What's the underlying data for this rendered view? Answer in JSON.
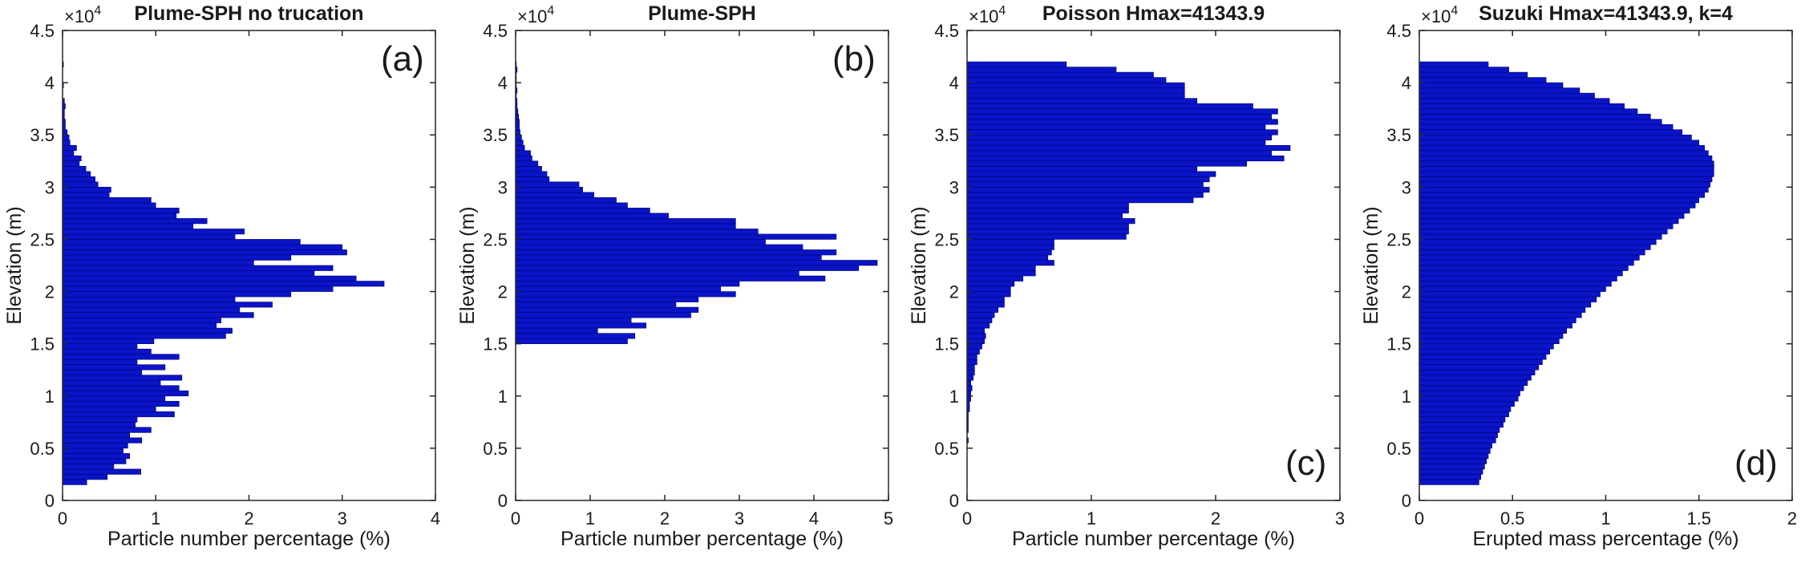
{
  "colors": {
    "bar_fill": "#0a14c8",
    "bar_edge": "#00006a",
    "axis": "#262626"
  },
  "chart_data": [
    {
      "type": "bar",
      "orientation": "horizontal",
      "title": "Plume-SPH no trucation",
      "panel_label": "(a)",
      "xlabel": "Particle number percentage (%)",
      "ylabel": "Elevation (m)",
      "xlim": [
        0,
        4
      ],
      "ylim": [
        0,
        45000
      ],
      "xticks": [
        "0",
        "1",
        "2",
        "3",
        "4"
      ],
      "yticks": [
        "0",
        "0.5",
        "1",
        "1.5",
        "2",
        "2.5",
        "3",
        "3.5",
        "4",
        "4.5"
      ],
      "y_multiplier": "×10^4",
      "bin_width_m": 500,
      "bin_centers_m": [
        1750,
        2250,
        2750,
        3250,
        3750,
        4250,
        4750,
        5250,
        5750,
        6250,
        6750,
        7250,
        7750,
        8250,
        8750,
        9250,
        9750,
        10250,
        10750,
        11250,
        11750,
        12250,
        12750,
        13250,
        13750,
        14250,
        14750,
        15250,
        15750,
        16250,
        16750,
        17250,
        17750,
        18250,
        18750,
        19250,
        19750,
        20250,
        20750,
        21250,
        21750,
        22250,
        22750,
        23250,
        23750,
        24250,
        24750,
        25250,
        25750,
        26250,
        26750,
        27250,
        27750,
        28250,
        28750,
        29250,
        29750,
        30250,
        30750,
        31250,
        31750,
        32250,
        32750,
        33250,
        33750,
        34250,
        34750,
        35250,
        35750,
        36250,
        36750,
        37250,
        37750,
        38250,
        38750,
        39250,
        39750,
        40250,
        40750,
        41250,
        41750
      ],
      "values": [
        0.26,
        0.48,
        0.84,
        0.55,
        0.68,
        0.72,
        0.65,
        0.7,
        0.85,
        0.72,
        0.95,
        0.78,
        0.8,
        1.2,
        1.0,
        1.25,
        1.1,
        1.35,
        1.25,
        1.05,
        1.28,
        0.85,
        1.1,
        0.8,
        1.25,
        0.95,
        0.8,
        0.98,
        1.75,
        1.82,
        1.65,
        1.7,
        2.05,
        1.9,
        2.25,
        1.85,
        2.45,
        2.9,
        3.45,
        3.15,
        2.7,
        2.9,
        2.05,
        2.45,
        3.05,
        3.0,
        2.55,
        1.85,
        1.95,
        1.4,
        1.55,
        1.22,
        1.25,
        1.0,
        0.95,
        0.5,
        0.52,
        0.38,
        0.35,
        0.3,
        0.25,
        0.18,
        0.2,
        0.12,
        0.15,
        0.08,
        0.07,
        0.05,
        0.03,
        0.03,
        0.02,
        0.02,
        0.03,
        0.02,
        0.0,
        0.0,
        0.01,
        0.0,
        0.0,
        0.0,
        0.01
      ]
    },
    {
      "type": "bar",
      "orientation": "horizontal",
      "title": "Plume-SPH",
      "panel_label": "(b)",
      "xlabel": "Particle number percentage (%)",
      "ylabel": "Elevation (m)",
      "xlim": [
        0,
        5
      ],
      "ylim": [
        0,
        45000
      ],
      "xticks": [
        "0",
        "1",
        "2",
        "3",
        "4",
        "5"
      ],
      "yticks": [
        "0",
        "0.5",
        "1",
        "1.5",
        "2",
        "2.5",
        "3",
        "3.5",
        "4",
        "4.5"
      ],
      "y_multiplier": "×10^4",
      "bin_width_m": 500,
      "bin_centers_m": [
        15250,
        15750,
        16250,
        16750,
        17250,
        17750,
        18250,
        18750,
        19250,
        19750,
        20250,
        20750,
        21250,
        21750,
        22250,
        22750,
        23250,
        23750,
        24250,
        24750,
        25250,
        25750,
        26250,
        26750,
        27250,
        27750,
        28250,
        28750,
        29250,
        29750,
        30250,
        30750,
        31250,
        31750,
        32250,
        32750,
        33250,
        33750,
        34250,
        34750,
        35250,
        35750,
        36250,
        36750,
        37250,
        37750,
        38250,
        38750,
        39250,
        39750,
        40250,
        40750,
        41250,
        41750
      ],
      "values": [
        1.5,
        1.6,
        1.1,
        1.75,
        1.55,
        2.35,
        2.45,
        2.15,
        2.45,
        2.95,
        2.75,
        3.0,
        4.15,
        3.8,
        4.6,
        4.85,
        4.1,
        4.3,
        3.85,
        3.35,
        4.3,
        3.25,
        2.95,
        2.95,
        2.05,
        1.8,
        1.5,
        1.35,
        1.05,
        0.9,
        0.85,
        0.45,
        0.42,
        0.35,
        0.3,
        0.22,
        0.2,
        0.12,
        0.1,
        0.08,
        0.06,
        0.05,
        0.05,
        0.04,
        0.03,
        0.02,
        0.02,
        0.01,
        0.02,
        0.01,
        0.01,
        0.01,
        0.02,
        0.01
      ]
    },
    {
      "type": "bar",
      "orientation": "horizontal",
      "title": "Poisson Hmax=41343.9",
      "panel_label": "(c)",
      "xlabel": "Particle number percentage (%)",
      "ylabel": "Elevation (m)",
      "xlim": [
        0,
        3
      ],
      "ylim": [
        0,
        45000
      ],
      "xticks": [
        "0",
        "1",
        "2",
        "3"
      ],
      "yticks": [
        "0",
        "0.5",
        "1",
        "1.5",
        "2",
        "2.5",
        "3",
        "3.5",
        "4",
        "4.5"
      ],
      "y_multiplier": "×10^4",
      "bin_width_m": 500,
      "bin_centers_m": [
        1750,
        2250,
        2750,
        3250,
        3750,
        4250,
        4750,
        5250,
        5750,
        6250,
        6750,
        7250,
        7750,
        8250,
        8750,
        9250,
        9750,
        10250,
        10750,
        11250,
        11750,
        12250,
        12750,
        13250,
        13750,
        14250,
        14750,
        15250,
        15750,
        16250,
        16750,
        17250,
        17750,
        18250,
        18750,
        19250,
        19750,
        20250,
        20750,
        21250,
        21750,
        22250,
        22750,
        23250,
        23750,
        24250,
        24750,
        25250,
        25750,
        26250,
        26750,
        27250,
        27750,
        28250,
        28750,
        29250,
        29750,
        30250,
        30750,
        31250,
        31750,
        32250,
        32750,
        33250,
        33750,
        34250,
        34750,
        35250,
        35750,
        36250,
        36750,
        37250,
        37750,
        38250,
        38750,
        39250,
        39750,
        40250,
        40750,
        41250,
        41750
      ],
      "values": [
        0.0,
        0.0,
        0.0,
        0.0,
        0.0,
        0.0,
        0.0,
        0.0,
        0.01,
        0.0,
        0.01,
        0.01,
        0.01,
        0.01,
        0.02,
        0.02,
        0.03,
        0.03,
        0.04,
        0.03,
        0.05,
        0.06,
        0.06,
        0.08,
        0.08,
        0.1,
        0.12,
        0.14,
        0.15,
        0.14,
        0.18,
        0.2,
        0.22,
        0.25,
        0.3,
        0.3,
        0.35,
        0.35,
        0.38,
        0.45,
        0.55,
        0.55,
        0.7,
        0.65,
        0.68,
        0.7,
        0.7,
        1.28,
        1.3,
        1.3,
        1.35,
        1.25,
        1.3,
        1.3,
        1.82,
        1.9,
        1.95,
        1.9,
        1.95,
        2.0,
        1.85,
        2.25,
        2.55,
        2.45,
        2.6,
        2.4,
        2.45,
        2.5,
        2.4,
        2.5,
        2.45,
        2.5,
        2.3,
        1.85,
        1.75,
        1.75,
        1.75,
        1.6,
        1.5,
        1.2,
        0.8
      ]
    },
    {
      "type": "bar",
      "orientation": "horizontal",
      "title": "Suzuki Hmax=41343.9, k=4",
      "panel_label": "(d)",
      "xlabel": "Erupted mass percentage (%)",
      "ylabel": "Elevation (m)",
      "xlim": [
        0,
        2
      ],
      "ylim": [
        0,
        45000
      ],
      "xticks": [
        "0",
        "0.5",
        "1",
        "1.5",
        "2"
      ],
      "yticks": [
        "0",
        "0.5",
        "1",
        "1.5",
        "2",
        "2.5",
        "3",
        "3.5",
        "4",
        "4.5"
      ],
      "y_multiplier": "×10^4",
      "bin_width_m": 500,
      "bin_centers_m": [
        1750,
        2250,
        2750,
        3250,
        3750,
        4250,
        4750,
        5250,
        5750,
        6250,
        6750,
        7250,
        7750,
        8250,
        8750,
        9250,
        9750,
        10250,
        10750,
        11250,
        11750,
        12250,
        12750,
        13250,
        13750,
        14250,
        14750,
        15250,
        15750,
        16250,
        16750,
        17250,
        17750,
        18250,
        18750,
        19250,
        19750,
        20250,
        20750,
        21250,
        21750,
        22250,
        22750,
        23250,
        23750,
        24250,
        24750,
        25250,
        25750,
        26250,
        26750,
        27250,
        27750,
        28250,
        28750,
        29250,
        29750,
        30250,
        30750,
        31250,
        31750,
        32250,
        32750,
        33250,
        33750,
        34250,
        34750,
        35250,
        35750,
        36250,
        36750,
        37250,
        37750,
        38250,
        38750,
        39250,
        39750,
        40250,
        40750,
        41250,
        41750
      ],
      "values": [
        0.32,
        0.33,
        0.34,
        0.35,
        0.36,
        0.37,
        0.38,
        0.39,
        0.41,
        0.42,
        0.43,
        0.45,
        0.46,
        0.48,
        0.49,
        0.51,
        0.53,
        0.54,
        0.56,
        0.58,
        0.6,
        0.62,
        0.64,
        0.66,
        0.68,
        0.7,
        0.72,
        0.75,
        0.77,
        0.79,
        0.82,
        0.84,
        0.87,
        0.89,
        0.92,
        0.95,
        0.97,
        1.0,
        1.03,
        1.06,
        1.09,
        1.12,
        1.15,
        1.18,
        1.21,
        1.24,
        1.27,
        1.3,
        1.33,
        1.36,
        1.39,
        1.42,
        1.45,
        1.48,
        1.5,
        1.53,
        1.55,
        1.56,
        1.57,
        1.58,
        1.58,
        1.58,
        1.57,
        1.55,
        1.53,
        1.5,
        1.46,
        1.41,
        1.36,
        1.3,
        1.24,
        1.17,
        1.1,
        1.02,
        0.94,
        0.86,
        0.77,
        0.68,
        0.58,
        0.48,
        0.37
      ]
    }
  ]
}
